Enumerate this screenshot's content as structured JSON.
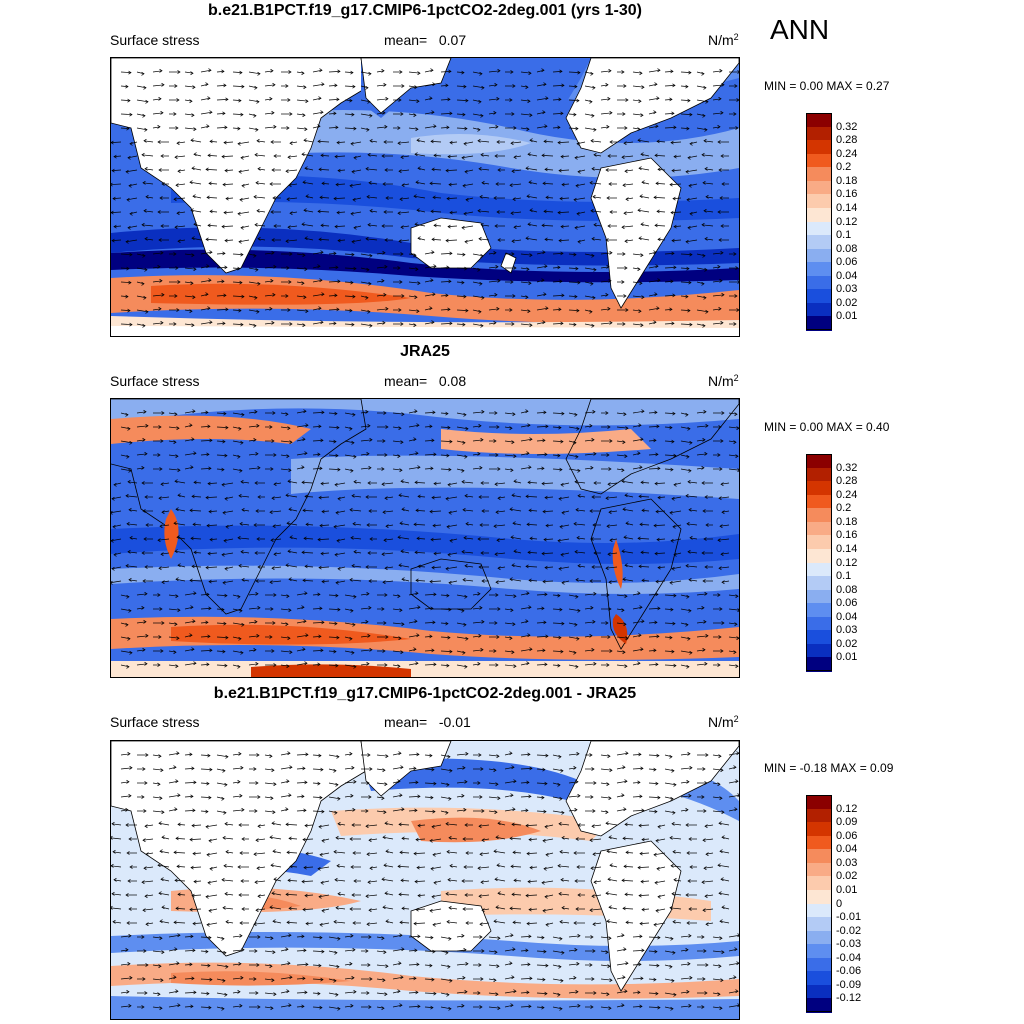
{
  "header": {
    "season": "ANN"
  },
  "panels": [
    {
      "title": "b.e21.B1PCT.f19_g17.CMIP6-1pctCO2-2deg.001 (yrs 1-30)",
      "variable": "Surface stress",
      "mean_label": "mean=",
      "mean_value": "0.07",
      "unit_base": "N/m",
      "unit_exp": "2",
      "minmax": "MIN =   0.00 MAX =   0.27",
      "colorbar": {
        "ticks": [
          "0.32",
          "0.28",
          "0.24",
          "0.2",
          "0.18",
          "0.16",
          "0.14",
          "0.12",
          "0.1",
          "0.08",
          "0.06",
          "0.04",
          "0.03",
          "0.02",
          "0.01"
        ],
        "colors": [
          "#8b0000",
          "#b22000",
          "#d43500",
          "#f05a1e",
          "#f58b5c",
          "#f9ab86",
          "#fccbad",
          "#fde6d3",
          "#dbe9fb",
          "#b3cbf5",
          "#8aaef0",
          "#5e8ef0",
          "#3a6de8",
          "#1a4fdd",
          "#0a2fc0",
          "#000080"
        ]
      }
    },
    {
      "title": "JRA25",
      "variable": "Surface stress",
      "mean_label": "mean=",
      "mean_value": "0.08",
      "unit_base": "N/m",
      "unit_exp": "2",
      "minmax": "MIN =   0.00 MAX =   0.40",
      "colorbar": {
        "ticks": [
          "0.32",
          "0.28",
          "0.24",
          "0.2",
          "0.18",
          "0.16",
          "0.14",
          "0.12",
          "0.1",
          "0.08",
          "0.06",
          "0.04",
          "0.03",
          "0.02",
          "0.01"
        ],
        "colors": [
          "#8b0000",
          "#b22000",
          "#d43500",
          "#f05a1e",
          "#f58b5c",
          "#f9ab86",
          "#fccbad",
          "#fde6d3",
          "#dbe9fb",
          "#b3cbf5",
          "#8aaef0",
          "#5e8ef0",
          "#3a6de8",
          "#1a4fdd",
          "#0a2fc0",
          "#000080"
        ]
      }
    },
    {
      "title": "b.e21.B1PCT.f19_g17.CMIP6-1pctCO2-2deg.001 - JRA25",
      "variable": "Surface stress",
      "mean_label": "mean=",
      "mean_value": "-0.01",
      "unit_base": "N/m",
      "unit_exp": "2",
      "minmax": "MIN =  -0.18 MAX =   0.09",
      "colorbar": {
        "ticks": [
          "0.12",
          "0.09",
          "0.06",
          "0.04",
          "0.03",
          "0.02",
          "0.01",
          "0",
          "-0.01",
          "-0.02",
          "-0.03",
          "-0.04",
          "-0.06",
          "-0.09",
          "-0.12"
        ],
        "colors": [
          "#8b0000",
          "#b22000",
          "#d43500",
          "#f05a1e",
          "#f58b5c",
          "#f9ab86",
          "#fccbad",
          "#fde6d3",
          "#dbe9fb",
          "#b3cbf5",
          "#8aaef0",
          "#5e8ef0",
          "#3a6de8",
          "#1a4fdd",
          "#0a2fc0",
          "#000080"
        ]
      }
    }
  ],
  "style": {
    "land": "#ffffff",
    "coast": "#000000",
    "arrow": "#000000"
  }
}
